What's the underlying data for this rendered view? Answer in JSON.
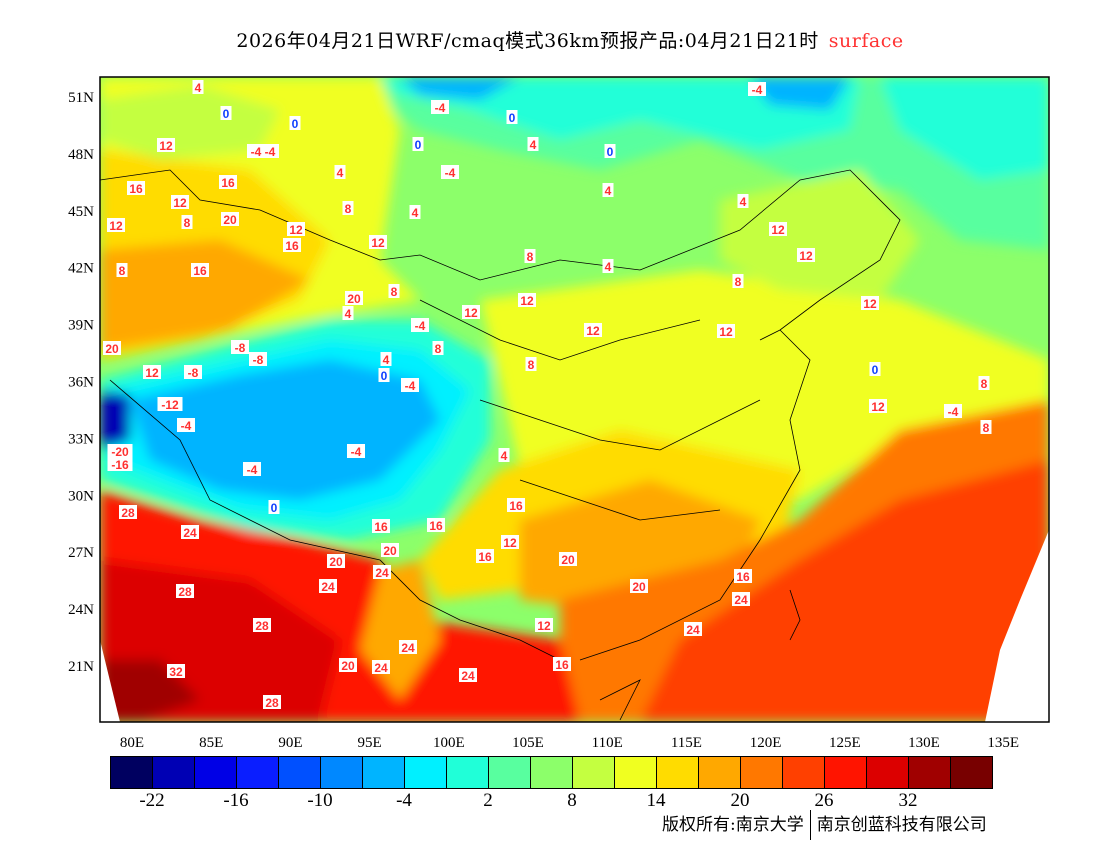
{
  "title": {
    "main": "2026年04月21日WRF/cmaq模式36km预报产品:04月21日21时",
    "variable": "surface"
  },
  "axes": {
    "longitude_labels": [
      "80E",
      "85E",
      "90E",
      "95E",
      "100E",
      "105E",
      "110E",
      "115E",
      "120E",
      "125E",
      "130E",
      "135E"
    ],
    "latitude_labels": [
      "51N",
      "48N",
      "45N",
      "42N",
      "39N",
      "36N",
      "33N",
      "30N",
      "27N",
      "24N",
      "21N"
    ]
  },
  "colorbar": {
    "colors": [
      "#000060",
      "#0000b4",
      "#0000e6",
      "#0a1eff",
      "#0050ff",
      "#0088ff",
      "#00b4ff",
      "#00f0ff",
      "#20ffd8",
      "#58ff9f",
      "#8cff6a",
      "#c4ff40",
      "#f0ff20",
      "#ffdc00",
      "#ffa800",
      "#ff7800",
      "#ff4000",
      "#ff1400",
      "#dc0000",
      "#a00000",
      "#780000"
    ],
    "tick_labels": [
      "-22",
      "-16",
      "-10",
      "-4",
      "2",
      "8",
      "14",
      "20",
      "26",
      "32"
    ]
  },
  "copyright": {
    "left": "版权所有:南京大学",
    "right": "南京创蓝科技有限公司"
  },
  "map": {
    "contour_labels": [
      "4",
      "0",
      "0",
      "-4",
      "0",
      "-4",
      "0",
      "4",
      "-4",
      "4",
      "0",
      "-4",
      "12",
      "16",
      "16",
      "12",
      "20",
      "12",
      "16",
      "8",
      "12",
      "8",
      "-4",
      "4",
      "8",
      "4",
      "8",
      "4",
      "12",
      "16",
      "20",
      "12",
      "-8",
      "-8",
      "-8",
      "-12",
      "-4",
      "-4",
      "-4",
      "-4",
      "0",
      "0",
      "-4",
      "-20",
      "-16",
      "28",
      "24",
      "28",
      "28",
      "32",
      "28",
      "20",
      "24",
      "16",
      "20",
      "24",
      "24",
      "24",
      "20",
      "24",
      "16",
      "12",
      "16",
      "20",
      "16",
      "20",
      "24",
      "24",
      "12",
      "16",
      "12",
      "20",
      "12",
      "12",
      "8",
      "12",
      "8",
      "4",
      "4",
      "8",
      "4",
      "8",
      "12",
      "4",
      "12",
      "12",
      "12",
      "8",
      "8",
      "-4",
      "0",
      "16"
    ]
  }
}
